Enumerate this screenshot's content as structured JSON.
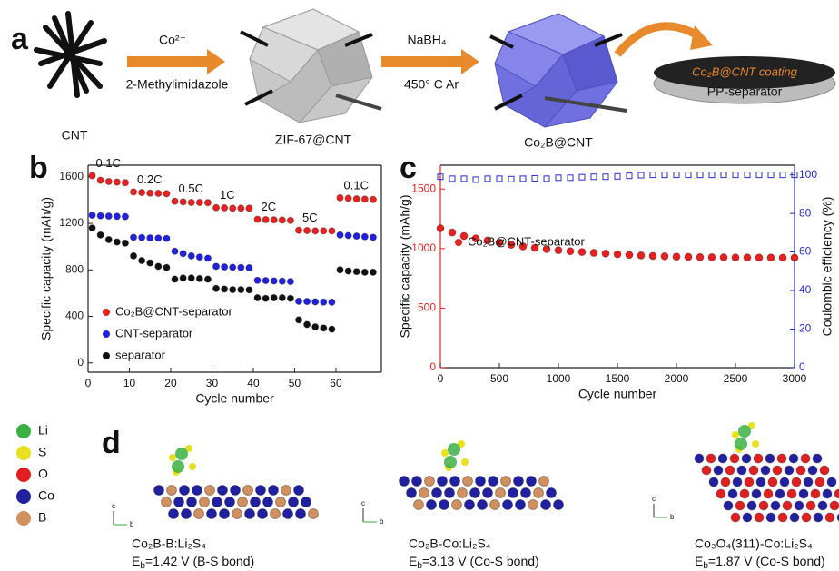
{
  "figure": {
    "panel_a": {
      "label": "a",
      "cnt": "CNT",
      "step1_top": "Co²⁺",
      "step1_bottom": "2-Methylimidazole",
      "zif": "ZIF-67@CNT",
      "step2_top": "NaBH₄",
      "step2_bottom": "450° C Ar",
      "product": "Co₂B@CNT",
      "coating": "Co₂B@CNT coating",
      "separator": "PP-separator"
    },
    "panel_d": {
      "label": "d",
      "elements": [
        "Li",
        "S",
        "O",
        "Co",
        "B"
      ],
      "element_colors": [
        "#3cb043",
        "#e8e020",
        "#e02020",
        "#2020a0",
        "#d09060"
      ],
      "axis_labels": [
        "c",
        "b"
      ],
      "structures": [
        {
          "name": "Co₂B-B:Li₂S₄",
          "energy": {
            "symbol": "E",
            "sub": "b",
            "text": "=1.42 V (B-S bond)"
          }
        },
        {
          "name": "Co₂B-Co:Li₂S₄",
          "energy": {
            "symbol": "E",
            "sub": "b",
            "text": "=3.13 V (Co-S bond)"
          }
        },
        {
          "name": "Co₃O₄(311)-Co:Li₂S₄",
          "energy": {
            "symbol": "E",
            "sub": "b",
            "text": "=1.87 V (Co-S bond)"
          }
        }
      ]
    }
  },
  "chart_data": [
    {
      "type": "scatter",
      "panel_label": "b",
      "xlabel": "Cycle number",
      "ylabel": "Specific capacity (mAh/g)",
      "x": [
        1,
        3,
        5,
        7,
        9,
        11,
        13,
        15,
        17,
        19,
        21,
        23,
        25,
        27,
        29,
        31,
        33,
        35,
        37,
        39,
        41,
        43,
        45,
        47,
        49,
        51,
        53,
        55,
        57,
        59,
        61,
        63,
        65,
        67,
        69
      ],
      "xlim": [
        0,
        71
      ],
      "xticks": [
        0,
        10,
        20,
        30,
        40,
        50,
        60
      ],
      "ylim": [
        -80,
        1700
      ],
      "yticks": [
        0,
        400,
        800,
        1200,
        1600
      ],
      "legend": "lower left",
      "rate_labels": [
        "0.1C",
        "0.2C",
        "0.5C",
        "1C",
        "2C",
        "5C",
        "0.1C"
      ],
      "series": [
        {
          "name": "Co₂B@CNT-separator",
          "color": "#e8201f",
          "values": [
            1610,
            1570,
            1560,
            1555,
            1550,
            1470,
            1465,
            1460,
            1458,
            1455,
            1390,
            1385,
            1380,
            1380,
            1378,
            1335,
            1333,
            1330,
            1330,
            1330,
            1235,
            1232,
            1230,
            1228,
            1225,
            1140,
            1138,
            1135,
            1135,
            1135,
            1420,
            1415,
            1410,
            1408,
            1405
          ]
        },
        {
          "name": "CNT-separator",
          "color": "#2020e0",
          "values": [
            1270,
            1265,
            1262,
            1260,
            1258,
            1080,
            1078,
            1075,
            1073,
            1070,
            960,
            940,
            920,
            910,
            900,
            830,
            825,
            822,
            820,
            818,
            710,
            708,
            705,
            703,
            700,
            530,
            528,
            525,
            523,
            522,
            1100,
            1095,
            1090,
            1085,
            1080
          ]
        },
        {
          "name": "separator",
          "color": "#111111",
          "values": [
            1160,
            1100,
            1060,
            1040,
            1030,
            920,
            880,
            860,
            830,
            820,
            720,
            730,
            730,
            725,
            720,
            640,
            635,
            630,
            630,
            628,
            560,
            555,
            560,
            560,
            555,
            370,
            330,
            310,
            300,
            290,
            800,
            790,
            785,
            780,
            780
          ]
        }
      ]
    },
    {
      "type": "scatter",
      "panel_label": "c",
      "xlabel": "Cycle number",
      "ylabel": "Specific capacity (mAh/g)",
      "y2label": "Coulombic efficiency (%)",
      "x": [
        0,
        100,
        200,
        300,
        400,
        500,
        600,
        700,
        800,
        900,
        1000,
        1100,
        1200,
        1300,
        1400,
        1500,
        1600,
        1700,
        1800,
        1900,
        2000,
        2100,
        2200,
        2300,
        2400,
        2500,
        2600,
        2700,
        2800,
        2900,
        3000
      ],
      "xlim": [
        0,
        3000
      ],
      "xticks": [
        0,
        500,
        1000,
        1500,
        2000,
        2500,
        3000
      ],
      "ylim": [
        0,
        1700
      ],
      "yticks": [
        0,
        500,
        1000,
        1500
      ],
      "y2lim": [
        0,
        105
      ],
      "y2ticks": [
        0,
        20,
        40,
        60,
        80,
        100
      ],
      "legend": "upper left",
      "series": [
        {
          "name": "Co₂B@CNT-separator",
          "color": "#e8201f",
          "values": [
            1170,
            1135,
            1105,
            1085,
            1068,
            1050,
            1032,
            1018,
            1006,
            995,
            986,
            978,
            971,
            964,
            958,
            952,
            947,
            942,
            938,
            935,
            932,
            930,
            928,
            927,
            926,
            925,
            925,
            924,
            924,
            923,
            923
          ]
        },
        {
          "color": "#2b2bd0",
          "marker": "square-open",
          "axis": "y2",
          "values": [
            99,
            98,
            98,
            97.5,
            98,
            98,
            97.8,
            98,
            98.2,
            98,
            98.5,
            98.5,
            98.8,
            99,
            99,
            99.2,
            99.5,
            99.8,
            100,
            100,
            100,
            100,
            100,
            100,
            100,
            100,
            100,
            100,
            100,
            100,
            100
          ]
        }
      ]
    }
  ]
}
